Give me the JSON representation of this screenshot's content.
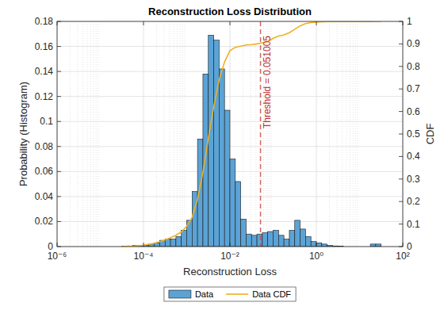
{
  "chart_data": {
    "type": "histogram",
    "title": "Reconstruction Loss Distribution",
    "x_label": "Reconstruction Loss",
    "y_label": "Probability (Histogram)",
    "y2_label": "CDF",
    "log": "x",
    "grid": true,
    "legend": "south",
    "xlim": [
      1e-06,
      100
    ],
    "xticks": [
      {
        "value": 1e-06,
        "label": "10⁻⁶"
      },
      {
        "value": 0.0001,
        "label": "10⁻⁴"
      },
      {
        "value": 0.01,
        "label": "10⁻²"
      },
      {
        "value": 1,
        "label": "10⁰"
      },
      {
        "value": 100,
        "label": "10²"
      }
    ],
    "ylim": [
      0,
      0.18
    ],
    "yticks": [
      0,
      0.02,
      0.04,
      0.06,
      0.08,
      0.1,
      0.12,
      0.14,
      0.16,
      0.18
    ],
    "y2lim": [
      0,
      1
    ],
    "y2ticks": [
      0,
      0.1,
      0.2,
      0.3,
      0.4,
      0.5,
      0.6,
      0.7,
      0.8,
      0.9,
      1
    ],
    "series": [
      {
        "name": "Data",
        "type": "histogram",
        "color": "#5ba3d6",
        "bins": [
          3.1623e-05,
          4.217e-05,
          5.6234e-05,
          7.4989e-05,
          0.0001,
          0.00013335,
          0.00017783,
          0.00023714,
          0.00031623,
          0.0004217,
          0.00056234,
          0.00074989,
          0.001,
          0.0013335,
          0.0017783,
          0.0023714,
          0.0031623,
          0.004217,
          0.0056234,
          0.0074989,
          0.01,
          0.013335,
          0.017783,
          0.023714,
          0.031623,
          0.04217,
          0.056234,
          0.074989,
          0.1,
          0.13335,
          0.17783,
          0.23714,
          0.31623,
          0.4217,
          0.56234,
          0.74989,
          1,
          1.3335,
          1.7783,
          2.3714,
          3.1623,
          4.217,
          5.6234,
          7.4989,
          10,
          13.335,
          17.783,
          23.714,
          31.623
        ],
        "values": [
          0.0003,
          0.0005,
          0.001,
          0.001,
          0.001,
          0.002,
          0.003,
          0.005,
          0.006,
          0.006,
          0.008,
          0.013,
          0.021,
          0.044,
          0.086,
          0.138,
          0.169,
          0.165,
          0.142,
          0.109,
          0.07,
          0.052,
          0.022,
          0.01,
          0.009,
          0.01,
          0.011,
          0.012,
          0.013,
          0.009,
          0.006,
          0.013,
          0.021,
          0.014,
          0.008,
          0.004,
          0.003,
          0.002,
          0.001,
          0.0005,
          0.0003,
          0,
          0,
          0,
          0,
          0,
          0.002,
          0.002
        ]
      },
      {
        "name": "Data CDF",
        "type": "line",
        "axis": "y2",
        "color": "#edb120",
        "x": [
          3.1623e-05,
          4.217e-05,
          5.6234e-05,
          7.4989e-05,
          0.0001,
          0.00013335,
          0.00017783,
          0.00023714,
          0.00031623,
          0.0004217,
          0.00056234,
          0.00074989,
          0.001,
          0.0013335,
          0.0017783,
          0.0023714,
          0.0031623,
          0.004217,
          0.0056234,
          0.0074989,
          0.01,
          0.013335,
          0.017783,
          0.023714,
          0.031623,
          0.04217,
          0.056234,
          0.074989,
          0.1,
          0.13335,
          0.17783,
          0.23714,
          0.31623,
          0.4217,
          0.56234,
          0.74989,
          1,
          1.3335,
          1.7783,
          2.3714,
          3.1623,
          4.217,
          5.6234,
          7.4989,
          10,
          13.335,
          17.783,
          23.714,
          31.623
        ],
        "values": [
          0,
          0.001,
          0.002,
          0.004,
          0.006,
          0.01,
          0.015,
          0.022,
          0.03,
          0.04,
          0.05,
          0.065,
          0.09,
          0.13,
          0.21,
          0.33,
          0.48,
          0.62,
          0.74,
          0.82,
          0.87,
          0.885,
          0.89,
          0.895,
          0.897,
          0.9,
          0.905,
          0.91,
          0.925,
          0.935,
          0.94,
          0.95,
          0.965,
          0.98,
          0.99,
          0.995,
          0.997,
          0.998,
          0.999,
          0.999,
          0.999,
          0.999,
          0.999,
          0.999,
          0.999,
          0.999,
          0.999,
          1,
          1
        ]
      }
    ],
    "annotations": [
      {
        "text": "Threshold = 0.051005",
        "x": 0.051005
      }
    ]
  }
}
